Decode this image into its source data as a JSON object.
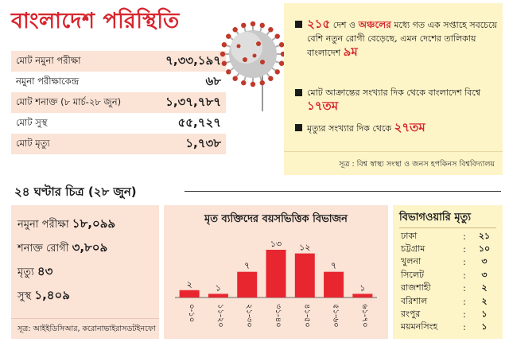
{
  "headline": "বাংলাদেশ পরিস্থিতি",
  "stats": [
    {
      "label": "মোট নমুনা পরীক্ষা",
      "value": "৭,৩৩,১৯৭"
    },
    {
      "label": "নমুনা পরীক্ষাকেন্দ্র",
      "value": "৬৮"
    },
    {
      "label": "মোট শনাক্ত (৮ মার্চ-২৮ জুন)",
      "value": "১,৩৭,৭৮৭"
    },
    {
      "label": "মোট সুস্থ",
      "value": "৫৫,৭২৭"
    },
    {
      "label": "মোট মৃত্যু",
      "value": "১,৭৩৮"
    }
  ],
  "facts": {
    "items": [
      {
        "pre": "",
        "red1": "২১৫",
        "mid": " দেশ ও ",
        "red2": "অঞ্চলের",
        "post": " মধ্যে গত এক সপ্তাহে সবচেয়ে বেশি নতুন রোগী বেড়েছে, এমন দেশের তালিকায় বাংলাদেশ ",
        "red3": "৯ম",
        "tail": ""
      },
      {
        "pre": "মোট আক্রান্তের সংখ্যার দিক থেকে বাংলাদেশ বিশ্বে ",
        "red1": "১৭তম",
        "mid": "",
        "red2": "",
        "post": "",
        "red3": "",
        "tail": ""
      },
      {
        "pre": "মৃত্যুর সংখ্যার দিক থেকে ",
        "red1": "২৭তম",
        "mid": "",
        "red2": "",
        "post": "",
        "red3": "",
        "tail": ""
      }
    ],
    "source": "সূত্র : বিশ্ব স্বাস্থ্য সংস্থা ও জনস হপকিনস বিশ্ববিদ্যালয়"
  },
  "section_title": "২৪ ঘণ্টার চিত্র (২৮ জুন)",
  "day24": {
    "tests_label": "নমুনা পরীক্ষা",
    "tests_value": "১৮,০৯৯",
    "cases_label": "শনাক্ত রোগী",
    "cases_value": "৩,৮০৯",
    "deaths_label": "মৃত্যু",
    "deaths_value": "৪৩",
    "recovered_label": "সুস্থ",
    "recovered_value": "১,৪০৯",
    "source": "সূত্র: আইইডিসিআর, করোনাভাইরাসডটইনফো"
  },
  "chart_data": {
    "type": "bar",
    "title": "মৃত ব্যক্তিদের বয়সভিত্তিক বিভাজন",
    "categories": [
      "০-১০",
      "১১-২০",
      "২১-৩০",
      "৩১-৪০",
      "৪১-৫০",
      "৫১-৬০",
      "৬১-৭০"
    ],
    "values": [
      2,
      1,
      7,
      13,
      12,
      7,
      1
    ],
    "value_labels": [
      "২",
      "১",
      "৭",
      "১৩",
      "১২",
      "৭",
      "১"
    ],
    "ylim": [
      0,
      13
    ],
    "bar_color": "#e8262f"
  },
  "divisions": {
    "title": "বিভাগওয়ারি মৃত্যু",
    "rows": [
      {
        "name": "ঢাকা",
        "sep": ":",
        "value": "২১"
      },
      {
        "name": "চট্টগ্রাম",
        "sep": ":",
        "value": "১০"
      },
      {
        "name": "খুলনা",
        "sep": ":",
        "value": "৩"
      },
      {
        "name": "সিলেট",
        "sep": ":",
        "value": "৩"
      },
      {
        "name": "রাজশাহী",
        "sep": ":",
        "value": "২"
      },
      {
        "name": "বরিশাল",
        "sep": ":",
        "value": "২"
      },
      {
        "name": "রংপুর",
        "sep": ":",
        "value": "১"
      },
      {
        "name": "ময়মনসিংহ",
        "sep": ":",
        "value": "১"
      }
    ]
  },
  "colors": {
    "accent_red": "#d8262e",
    "peach": "#fbe3d6",
    "cream": "#fdf4c8"
  }
}
